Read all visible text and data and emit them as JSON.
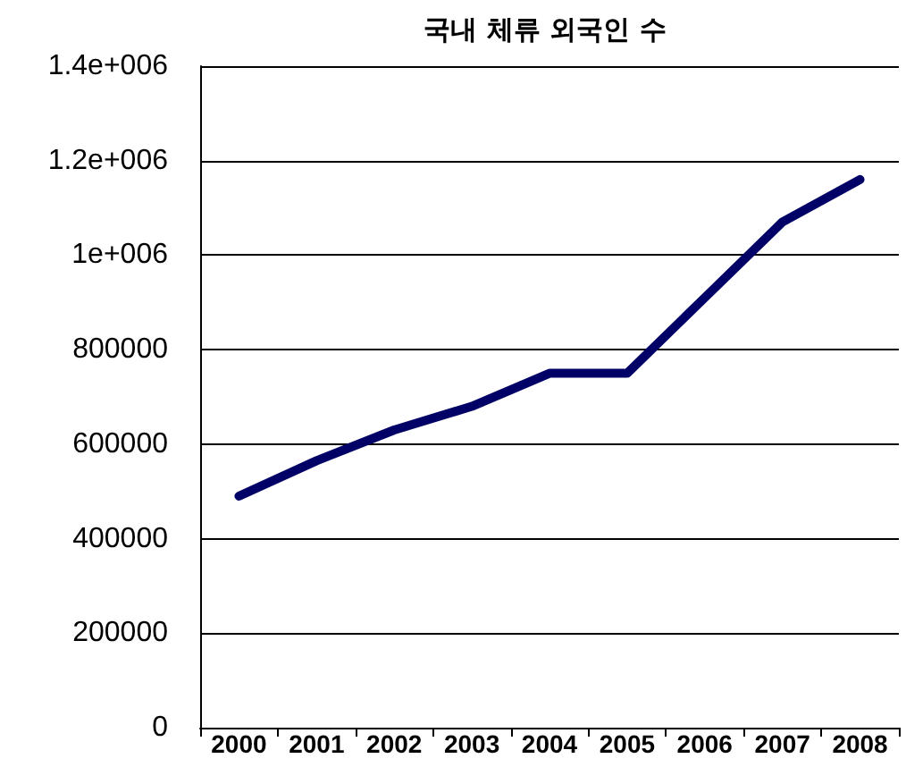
{
  "chart_data": {
    "type": "line",
    "title": "국내 체류 외국인 수",
    "categories": [
      "2000",
      "2001",
      "2002",
      "2003",
      "2004",
      "2005",
      "2006",
      "2007",
      "2008"
    ],
    "series": [
      {
        "color": "#000066",
        "values": [
          490000,
          565000,
          630000,
          680000,
          750000,
          750000,
          910000,
          1070000,
          1160000
        ]
      }
    ],
    "ylim": [
      0,
      1400000
    ],
    "yticks": [
      0,
      200000,
      400000,
      600000,
      800000,
      {
        "value": 1000000,
        "label": "1e+006"
      },
      {
        "value": 1200000,
        "label": "1.2e+006"
      },
      {
        "value": 1400000,
        "label": "1.4e+006"
      }
    ],
    "grid": "y",
    "marker": "none",
    "line_style": "solid"
  }
}
